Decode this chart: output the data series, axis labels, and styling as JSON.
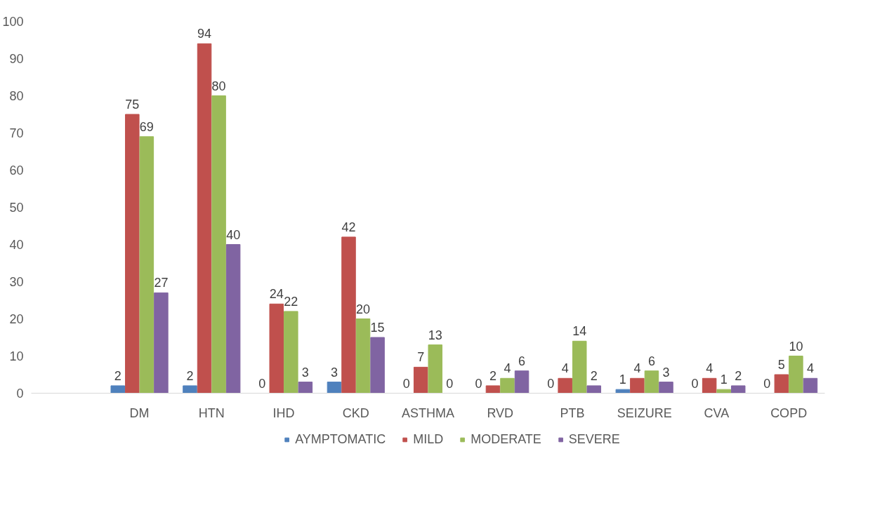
{
  "chart_data": {
    "type": "bar",
    "categories": [
      null,
      "DM",
      "HTN",
      "IHD",
      "CKD",
      "ASTHMA",
      "RVD",
      "PTB",
      "SEIZURE",
      "CVA",
      "COPD"
    ],
    "series": [
      {
        "name": "AYMPTOMATIC",
        "color": "#4f81bd",
        "values": [
          null,
          2,
          2,
          0,
          3,
          0,
          0,
          0,
          1,
          0,
          0
        ]
      },
      {
        "name": "MILD",
        "color": "#c0504d",
        "values": [
          null,
          75,
          94,
          24,
          42,
          7,
          2,
          4,
          4,
          4,
          5
        ]
      },
      {
        "name": "MODERATE",
        "color": "#9bbb59",
        "values": [
          null,
          69,
          80,
          22,
          20,
          13,
          4,
          14,
          6,
          1,
          10
        ]
      },
      {
        "name": "SEVERE",
        "color": "#8064a2",
        "values": [
          null,
          27,
          40,
          3,
          15,
          0,
          6,
          2,
          3,
          2,
          4
        ]
      }
    ],
    "ylim": [
      0,
      100
    ],
    "yticks": [
      0,
      10,
      20,
      30,
      40,
      50,
      60,
      70,
      80,
      90,
      100
    ],
    "grid": false,
    "legend": "bottom",
    "data_labels": true
  }
}
